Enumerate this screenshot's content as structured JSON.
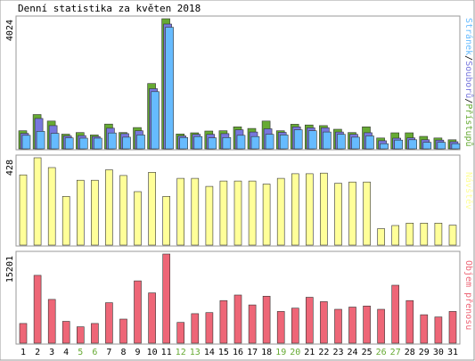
{
  "chart_data": {
    "type": "bar",
    "title": "Denní statistika za květen 2018",
    "categories": [
      "1",
      "2",
      "3",
      "4",
      "5",
      "6",
      "7",
      "8",
      "9",
      "10",
      "11",
      "12",
      "13",
      "14",
      "15",
      "16",
      "17",
      "18",
      "19",
      "20",
      "21",
      "22",
      "23",
      "24",
      "25",
      "26",
      "27",
      "28",
      "29",
      "30",
      "31"
    ],
    "weekend_days": [
      "5",
      "6",
      "12",
      "13",
      "19",
      "20",
      "26",
      "27"
    ],
    "colors": {
      "pristupu": "#66aa33",
      "souboru": "#7777dd",
      "stranek": "#66bbff",
      "navstev": "#ffff99",
      "objem": "#ee6677",
      "weekend_label": "#66aa33",
      "weekday_label": "#000000"
    },
    "panels": [
      {
        "id": "hits",
        "ymax_label": "4024",
        "ymax": 4024,
        "legend_parts": [
          {
            "text": "Stránek",
            "color": "#66bbff"
          },
          {
            "text": "/",
            "color": "#000000"
          },
          {
            "text": "Souborů",
            "color": "#7777dd"
          },
          {
            "text": "/",
            "color": "#000000"
          },
          {
            "text": "Přístupů",
            "color": "#66aa33"
          }
        ],
        "series": [
          {
            "name": "Přístupů",
            "color": "#66aa33",
            "values": [
              560,
              1060,
              860,
              455,
              505,
              430,
              765,
              505,
              660,
              2020,
              4024,
              460,
              495,
              550,
              560,
              680,
              630,
              860,
              560,
              760,
              740,
              720,
              605,
              505,
              680,
              335,
              495,
              495,
              385,
              335,
              280
            ]
          },
          {
            "name": "Souborů",
            "color": "#7777dd",
            "values": [
              480,
              940,
              720,
              400,
              410,
              380,
              640,
              470,
              560,
              1860,
              3860,
              400,
              450,
              450,
              470,
              590,
              520,
              620,
              510,
              680,
              650,
              650,
              520,
              450,
              500,
              250,
              330,
              340,
              280,
              270,
              220
            ]
          },
          {
            "name": "Stránek",
            "color": "#66bbff",
            "values": [
              420,
              540,
              480,
              340,
              330,
              330,
              490,
              360,
              430,
              1770,
              3760,
              350,
              380,
              340,
              350,
              420,
              380,
              450,
              430,
              590,
              560,
              520,
              450,
              360,
              400,
              160,
              270,
              280,
              200,
              200,
              160
            ]
          }
        ]
      },
      {
        "id": "visits",
        "ymax_label": "428",
        "ymax": 428,
        "legend_parts": [
          {
            "text": "Návštěv",
            "color": "#ffff99"
          }
        ],
        "series": [
          {
            "name": "Návštěv",
            "color": "#ffff99",
            "values": [
              344,
              428,
              380,
              239,
              318,
              318,
              369,
              341,
              262,
              357,
              239,
              327,
              327,
              288,
              314,
              314,
              314,
              299,
              327,
              350,
              350,
              353,
              303,
              309,
              309,
              81,
              96,
              108,
              108,
              108,
              98
            ]
          }
        ]
      },
      {
        "id": "bytes",
        "ymax_label": "15201",
        "ymax": 15201,
        "legend_parts": [
          {
            "text": "Objem přenosu",
            "color": "#ee6677"
          }
        ],
        "series": [
          {
            "name": "Objem přenosu",
            "color": "#ee6677",
            "values": [
              3356,
              11563,
              7459,
              3729,
              2797,
              3356,
              6899,
              4103,
              10630,
              8578,
              15201,
              3543,
              5035,
              5221,
              7272,
              8205,
              6526,
              8018,
              5408,
              5967,
              7832,
              7086,
              5781,
              6154,
              6339,
              5781,
              9883,
              7272,
              4849,
              4476,
              5408
            ]
          }
        ]
      }
    ]
  }
}
